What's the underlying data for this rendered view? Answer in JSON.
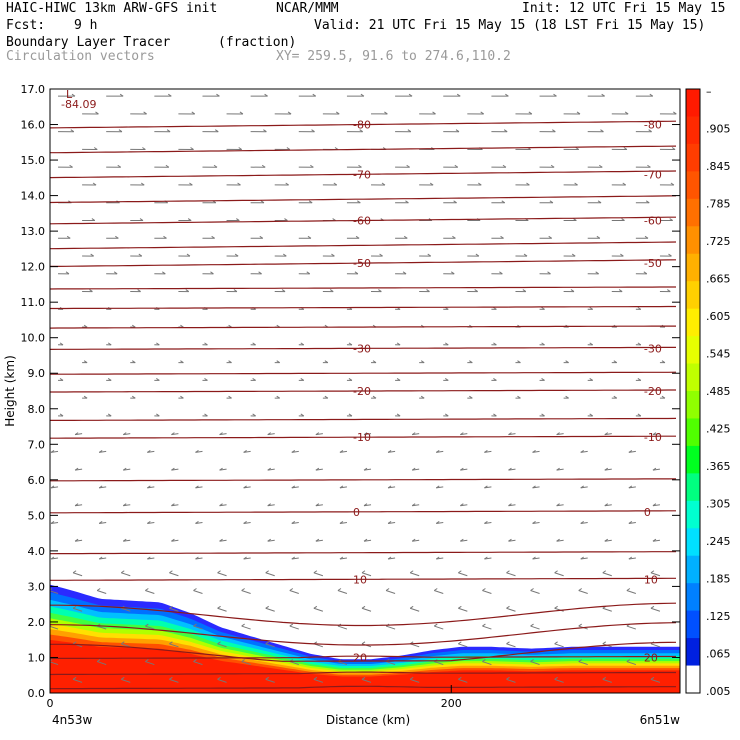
{
  "header": {
    "model": "HAIC-HIWC 13km ARW-GFS init",
    "org": "NCAR/MMM",
    "init": "Init: 12 UTC Fri 15 May 15",
    "fcst_label": "Fcst:",
    "fcst_value": "9 h",
    "valid": "Valid: 21 UTC Fri 15 May 15 (18 LST Fri 15 May 15)",
    "field": "Boundary Layer Tracer",
    "units": "(fraction)",
    "vectors": "Circulation vectors",
    "xy": "XY= 259.5, 91.6 to 274.6,110.2"
  },
  "colors": {
    "contour": "#8b1a1a",
    "vector": "#777777"
  },
  "chart_data": {
    "type": "heatmap",
    "xlabel": "Distance (km)",
    "ylabel": "Height (km)",
    "xlim": [
      0,
      314
    ],
    "ylim": [
      0,
      17
    ],
    "x_ticks": [
      0,
      200
    ],
    "y_ticks": [
      "0.0",
      "1.0",
      "2.0",
      "3.0",
      "4.0",
      "5.0",
      "6.0",
      "7.0",
      "8.0",
      "9.0",
      "10.0",
      "11.0",
      "12.0",
      "13.0",
      "14.0",
      "15.0",
      "16.0",
      "17.0"
    ],
    "left_endpoint": "4n53w",
    "right_endpoint": "6n51w",
    "low_label": "L",
    "low_value": "-84.09",
    "colorbar": {
      "labels": [
        "–",
        ".905",
        ".845",
        ".785",
        ".725",
        ".665",
        ".605",
        ".545",
        ".485",
        ".425",
        ".365",
        ".305",
        ".245",
        ".185",
        ".125",
        ".065",
        ".005"
      ],
      "colors": [
        "#ff1a00",
        "#ff2a00",
        "#ff3d00",
        "#ff5500",
        "#ff7000",
        "#ff9000",
        "#ffb000",
        "#ffd000",
        "#ffee00",
        "#e6ff00",
        "#c0ff00",
        "#90ff00",
        "#50ff00",
        "#00ff20",
        "#00ff80",
        "#00ffd0",
        "#00e0ff",
        "#00b0ff",
        "#0080ff",
        "#0050ff",
        "#0020e0",
        "#ffffff"
      ]
    },
    "temperature_contours_C": [
      {
        "value": "-80",
        "height_km": 16.0
      },
      {
        "value": "-70",
        "height_km": 14.6
      },
      {
        "value": "-60",
        "height_km": 13.3
      },
      {
        "value": "-50",
        "height_km": 12.1
      },
      {
        "value": "-30",
        "height_km": 9.7
      },
      {
        "value": "-20",
        "height_km": 8.5
      },
      {
        "value": "-10",
        "height_km": 7.2
      },
      {
        "value": "0",
        "height_km": 5.1
      },
      {
        "value": "10",
        "height_km": 3.2
      },
      {
        "value": "20",
        "height_km": 1.0
      }
    ],
    "pbl_top_km": [
      [
        0,
        3.05
      ],
      [
        10,
        2.9
      ],
      [
        25,
        2.65
      ],
      [
        40,
        2.6
      ],
      [
        55,
        2.55
      ],
      [
        70,
        2.25
      ],
      [
        85,
        1.85
      ],
      [
        100,
        1.6
      ],
      [
        115,
        1.35
      ],
      [
        130,
        1.1
      ],
      [
        145,
        0.95
      ],
      [
        160,
        0.95
      ],
      [
        175,
        1.05
      ],
      [
        190,
        1.2
      ],
      [
        205,
        1.3
      ],
      [
        220,
        1.3
      ],
      [
        240,
        1.25
      ],
      [
        260,
        1.3
      ],
      [
        280,
        1.3
      ],
      [
        300,
        1.3
      ],
      [
        314,
        1.3
      ]
    ]
  }
}
